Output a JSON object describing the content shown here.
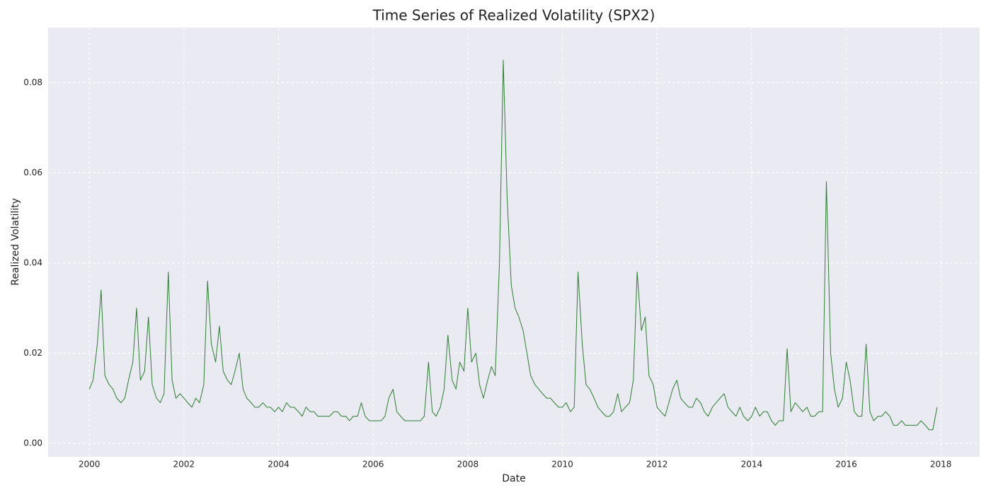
{
  "chart_data": {
    "type": "line",
    "title": "Time Series of Realized Volatility (SPX2)",
    "x_label": "Date",
    "y_label": "Realized Volatility",
    "color": "#2e7d32",
    "grid": true,
    "xlim": [
      1999.13,
      2018.82
    ],
    "ylim": [
      -0.003,
      0.0922
    ],
    "xticks": [
      2000,
      2002,
      2004,
      2006,
      2008,
      2010,
      2012,
      2014,
      2016,
      2018
    ],
    "yticks": [
      {
        "value": 0,
        "label": "0.00"
      },
      {
        "value": 0.02,
        "label": "0.02"
      },
      {
        "value": 0.04,
        "label": "0.04"
      },
      {
        "value": 0.06,
        "label": "0.06"
      },
      {
        "value": 0.08,
        "label": "0.08"
      }
    ],
    "x": [
      2000,
      2000.08,
      2000.17,
      2000.25,
      2000.33,
      2000.42,
      2000.5,
      2000.58,
      2000.67,
      2000.75,
      2000.83,
      2000.92,
      2001,
      2001.08,
      2001.17,
      2001.25,
      2001.33,
      2001.42,
      2001.5,
      2001.58,
      2001.67,
      2001.75,
      2001.83,
      2001.92,
      2002,
      2002.08,
      2002.17,
      2002.25,
      2002.33,
      2002.42,
      2002.5,
      2002.58,
      2002.67,
      2002.75,
      2002.83,
      2002.92,
      2003,
      2003.08,
      2003.17,
      2003.25,
      2003.33,
      2003.42,
      2003.5,
      2003.58,
      2003.67,
      2003.75,
      2003.83,
      2003.92,
      2004,
      2004.08,
      2004.17,
      2004.25,
      2004.33,
      2004.42,
      2004.5,
      2004.58,
      2004.67,
      2004.75,
      2004.83,
      2004.92,
      2005,
      2005.08,
      2005.17,
      2005.25,
      2005.33,
      2005.42,
      2005.5,
      2005.58,
      2005.67,
      2005.75,
      2005.83,
      2005.92,
      2006,
      2006.08,
      2006.17,
      2006.25,
      2006.33,
      2006.42,
      2006.5,
      2006.58,
      2006.67,
      2006.75,
      2006.83,
      2006.92,
      2007,
      2007.08,
      2007.17,
      2007.25,
      2007.33,
      2007.42,
      2007.5,
      2007.58,
      2007.67,
      2007.75,
      2007.83,
      2007.92,
      2008,
      2008.08,
      2008.17,
      2008.25,
      2008.33,
      2008.42,
      2008.5,
      2008.58,
      2008.67,
      2008.75,
      2008.83,
      2008.92,
      2009,
      2009.08,
      2009.17,
      2009.25,
      2009.33,
      2009.42,
      2009.5,
      2009.58,
      2009.67,
      2009.75,
      2009.83,
      2009.92,
      2010,
      2010.08,
      2010.17,
      2010.25,
      2010.33,
      2010.42,
      2010.5,
      2010.58,
      2010.67,
      2010.75,
      2010.83,
      2010.92,
      2011,
      2011.08,
      2011.17,
      2011.25,
      2011.33,
      2011.42,
      2011.5,
      2011.58,
      2011.67,
      2011.75,
      2011.83,
      2011.92,
      2012,
      2012.08,
      2012.17,
      2012.25,
      2012.33,
      2012.42,
      2012.5,
      2012.58,
      2012.67,
      2012.75,
      2012.83,
      2012.92,
      2013,
      2013.08,
      2013.17,
      2013.25,
      2013.33,
      2013.42,
      2013.5,
      2013.58,
      2013.67,
      2013.75,
      2013.83,
      2013.92,
      2014,
      2014.08,
      2014.17,
      2014.25,
      2014.33,
      2014.42,
      2014.5,
      2014.58,
      2014.67,
      2014.75,
      2014.83,
      2014.92,
      2015,
      2015.08,
      2015.17,
      2015.25,
      2015.33,
      2015.42,
      2015.5,
      2015.58,
      2015.67,
      2015.75,
      2015.83,
      2015.92,
      2016,
      2016.08,
      2016.17,
      2016.25,
      2016.33,
      2016.42,
      2016.5,
      2016.58,
      2016.67,
      2016.75,
      2016.83,
      2016.92,
      2017,
      2017.08,
      2017.17,
      2017.25,
      2017.33,
      2017.42,
      2017.5,
      2017.58,
      2017.67,
      2017.75,
      2017.83,
      2017.92
    ],
    "values": [
      0.012,
      0.014,
      0.022,
      0.034,
      0.015,
      0.013,
      0.012,
      0.01,
      0.009,
      0.01,
      0.014,
      0.018,
      0.03,
      0.014,
      0.016,
      0.028,
      0.013,
      0.01,
      0.009,
      0.011,
      0.038,
      0.014,
      0.01,
      0.011,
      0.01,
      0.009,
      0.008,
      0.01,
      0.009,
      0.013,
      0.036,
      0.022,
      0.018,
      0.026,
      0.016,
      0.014,
      0.013,
      0.016,
      0.02,
      0.012,
      0.01,
      0.009,
      0.008,
      0.008,
      0.009,
      0.008,
      0.008,
      0.007,
      0.008,
      0.007,
      0.009,
      0.008,
      0.008,
      0.007,
      0.006,
      0.008,
      0.007,
      0.007,
      0.006,
      0.006,
      0.006,
      0.006,
      0.007,
      0.007,
      0.006,
      0.006,
      0.005,
      0.006,
      0.006,
      0.009,
      0.006,
      0.005,
      0.005,
      0.005,
      0.005,
      0.006,
      0.01,
      0.012,
      0.007,
      0.006,
      0.005,
      0.005,
      0.005,
      0.005,
      0.005,
      0.006,
      0.018,
      0.007,
      0.006,
      0.008,
      0.012,
      0.024,
      0.014,
      0.012,
      0.018,
      0.016,
      0.03,
      0.018,
      0.02,
      0.013,
      0.01,
      0.014,
      0.017,
      0.015,
      0.04,
      0.085,
      0.055,
      0.035,
      0.03,
      0.028,
      0.025,
      0.02,
      0.015,
      0.013,
      0.012,
      0.011,
      0.01,
      0.01,
      0.009,
      0.008,
      0.008,
      0.009,
      0.007,
      0.008,
      0.038,
      0.022,
      0.013,
      0.012,
      0.01,
      0.008,
      0.007,
      0.006,
      0.006,
      0.007,
      0.011,
      0.007,
      0.008,
      0.009,
      0.014,
      0.038,
      0.025,
      0.028,
      0.015,
      0.013,
      0.008,
      0.007,
      0.006,
      0.009,
      0.012,
      0.014,
      0.01,
      0.009,
      0.008,
      0.008,
      0.01,
      0.009,
      0.007,
      0.006,
      0.008,
      0.009,
      0.01,
      0.011,
      0.008,
      0.007,
      0.006,
      0.008,
      0.006,
      0.005,
      0.006,
      0.008,
      0.006,
      0.007,
      0.007,
      0.005,
      0.004,
      0.005,
      0.005,
      0.021,
      0.007,
      0.009,
      0.008,
      0.007,
      0.008,
      0.006,
      0.006,
      0.007,
      0.007,
      0.058,
      0.02,
      0.012,
      0.008,
      0.01,
      0.018,
      0.014,
      0.007,
      0.006,
      0.006,
      0.022,
      0.007,
      0.005,
      0.006,
      0.006,
      0.007,
      0.006,
      0.004,
      0.004,
      0.005,
      0.004,
      0.004,
      0.004,
      0.004,
      0.005,
      0.004,
      0.003,
      0.003,
      0.008
    ]
  }
}
